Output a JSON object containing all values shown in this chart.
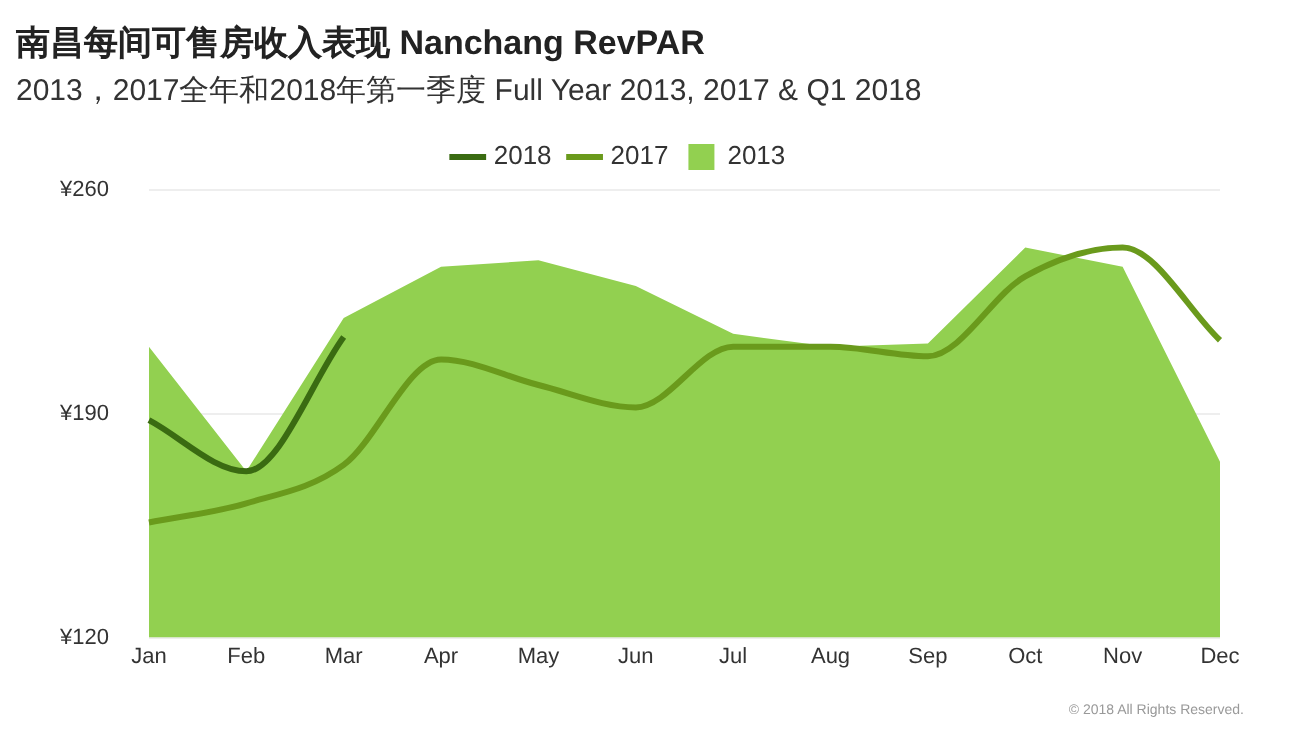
{
  "chart_data": {
    "type": "line",
    "title": "南昌每间可售房收入表现  Nanchang RevPAR",
    "subtitle": "2013，2017全年和2018年第一季度 Full Year 2013, 2017 & Q1 2018",
    "categories": [
      "Jan",
      "Feb",
      "Mar",
      "Apr",
      "May",
      "Jun",
      "Jul",
      "Aug",
      "Sep",
      "Oct",
      "Nov",
      "Dec"
    ],
    "series": [
      {
        "name": "2013",
        "type": "area",
        "color": "#92d050",
        "values": [
          211,
          172,
          220,
          236,
          238,
          230,
          215,
          211,
          212,
          242,
          236,
          175
        ]
      },
      {
        "name": "2018",
        "color": "#3a6b12",
        "values": [
          188,
          172,
          214,
          null,
          null,
          null,
          null,
          null,
          null,
          null,
          null,
          null
        ]
      },
      {
        "name": "2017",
        "color": "#6a9a1c",
        "values": [
          156,
          162,
          174,
          207,
          199,
          192,
          211,
          211,
          208,
          233,
          242,
          213
        ]
      }
    ],
    "ylim": [
      120,
      260
    ],
    "yticks": [
      {
        "value": 120,
        "label": "¥120"
      },
      {
        "value": 190,
        "label": "¥190"
      },
      {
        "value": 260,
        "label": "¥260"
      }
    ],
    "grid": "y",
    "legend": "top",
    "marker": "none",
    "line_style": "solid",
    "annotations": [
      "© 2018 All Rights Reserved."
    ]
  }
}
